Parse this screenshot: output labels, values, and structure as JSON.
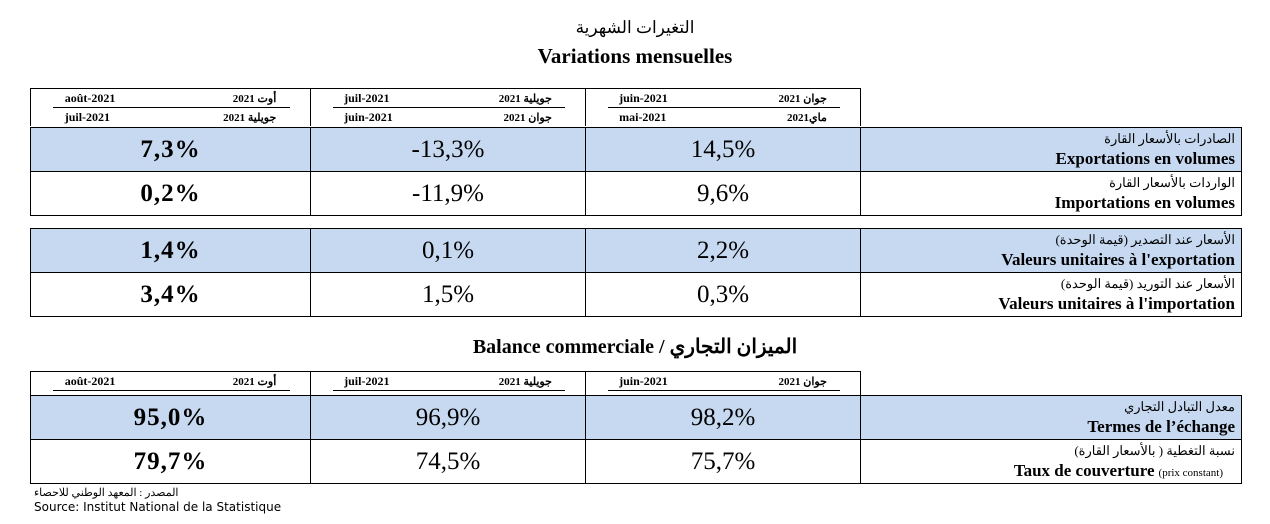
{
  "title_ar": "التغيرات الشهرية",
  "title_fr": "Variations mensuelles",
  "table1": {
    "columns": [
      {
        "top_fr": "août-2021",
        "top_ar": "أوت 2021",
        "bottom_fr": "juil-2021",
        "bottom_ar": "جويلية 2021"
      },
      {
        "top_fr": "juil-2021",
        "top_ar": "جويلية 2021",
        "bottom_fr": "juin-2021",
        "bottom_ar": "جوان 2021"
      },
      {
        "top_fr": "juin-2021",
        "top_ar": "جوان 2021",
        "bottom_fr": "mai-2021",
        "bottom_ar": "ماي2021"
      }
    ],
    "rows": [
      {
        "label_ar": "الصادرات بالأسعار القارة",
        "label_fr": "Exportations en volumes",
        "values": [
          "7,3%",
          "-13,3%",
          "14,5%"
        ]
      },
      {
        "label_ar": "الواردات بالأسعار القارة",
        "label_fr": "Importations en volumes",
        "values": [
          "0,2%",
          "-11,9%",
          "9,6%"
        ]
      },
      {
        "label_ar": "الأسعار عند التصدير (قيمة الوحدة)",
        "label_fr": "Valeurs unitaires à l'exportation",
        "values": [
          "1,4%",
          "0,1%",
          "2,2%"
        ]
      },
      {
        "label_ar": "الأسعار عند التوريد (قيمة الوحدة)",
        "label_fr": "Valeurs unitaires à l'importation",
        "values": [
          "3,4%",
          "1,5%",
          "0,3%"
        ]
      }
    ]
  },
  "section2_title": "Balance commerciale / الميزان التجاري",
  "table2": {
    "columns": [
      {
        "top_fr": "août-2021",
        "top_ar": "أوت 2021"
      },
      {
        "top_fr": "juil-2021",
        "top_ar": "جويلية 2021"
      },
      {
        "top_fr": "juin-2021",
        "top_ar": "جوان 2021"
      }
    ],
    "rows": [
      {
        "label_ar": "معدل التبادل التجاري",
        "label_fr": "Termes de l’échange",
        "values": [
          "95,0%",
          "96,9%",
          "98,2%"
        ]
      },
      {
        "label_ar": "نسبة التغطية ( بالأسعار القارة)",
        "label_fr": "Taux de couverture",
        "label_fr_note": "(prix constant)",
        "values": [
          "79,7%",
          "74,5%",
          "75,7%"
        ]
      }
    ]
  },
  "source_ar": "المصدر : المعهد الوطني للاحصاء",
  "source_fr": "Source: Institut National de la Statistique"
}
